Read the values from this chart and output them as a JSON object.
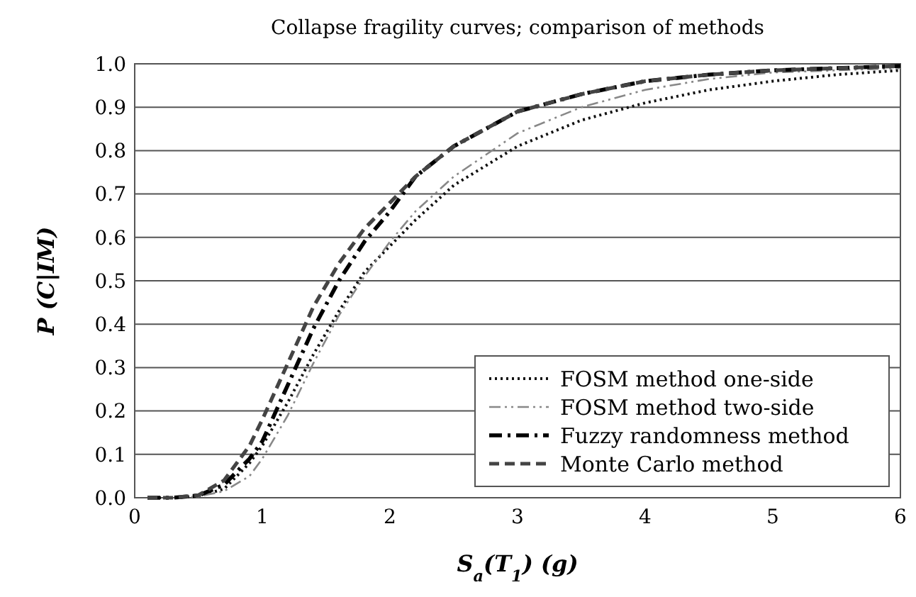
{
  "chart_data": {
    "type": "line",
    "title": "Collapse fragility curves; comparison of methods",
    "xlabel": "S$_{a}$(T$_{1}$) (g)",
    "ylabel": "P (C|IM)",
    "xlim": [
      0,
      6
    ],
    "xticks": [
      0,
      1,
      2,
      3,
      4,
      5,
      6
    ],
    "ylim": [
      0,
      1
    ],
    "yticks": [
      {
        "value": 0,
        "label": "0.0"
      },
      {
        "value": 0.1,
        "label": "0.1"
      },
      {
        "value": 0.2,
        "label": "0.2"
      },
      {
        "value": 0.3,
        "label": "0.3"
      },
      {
        "value": 0.4,
        "label": "0.4"
      },
      {
        "value": 0.5,
        "label": "0.5"
      },
      {
        "value": 0.6,
        "label": "0.6"
      },
      {
        "value": 0.7,
        "label": "0.7"
      },
      {
        "value": 0.8,
        "label": "0.8"
      },
      {
        "value": 0.9,
        "label": "0.9"
      },
      {
        "value": 1,
        "label": "1.0"
      }
    ],
    "grid": "y",
    "legend": "bottom right",
    "marker": "none",
    "x": [
      0.1,
      0.3,
      0.5,
      0.7,
      0.9,
      1.0,
      1.2,
      1.4,
      1.6,
      1.8,
      2.0,
      2.2,
      2.5,
      3,
      3.5,
      4,
      4.5,
      5,
      5.5,
      6
    ],
    "series": [
      {
        "name": "FOSM method one-side",
        "color": "#111111",
        "line_style": "dotted",
        "values": [
          0,
          0,
          0.004,
          0.02,
          0.08,
          0.12,
          0.22,
          0.33,
          0.43,
          0.52,
          0.58,
          0.64,
          0.72,
          0.81,
          0.87,
          0.91,
          0.94,
          0.96,
          0.975,
          0.985
        ]
      },
      {
        "name": "FOSM method two-side",
        "color": "#888888",
        "line_style": "dashdotdot",
        "values": [
          0,
          0,
          0.003,
          0.015,
          0.05,
          0.09,
          0.19,
          0.31,
          0.42,
          0.51,
          0.59,
          0.66,
          0.74,
          0.84,
          0.9,
          0.94,
          0.965,
          0.98,
          0.985,
          0.99
        ]
      },
      {
        "name": "Fuzzy randomness method",
        "color": "#000000",
        "line_style": "dashdot",
        "values": [
          0,
          0,
          0.005,
          0.03,
          0.09,
          0.13,
          0.26,
          0.39,
          0.5,
          0.59,
          0.66,
          0.74,
          0.81,
          0.89,
          0.93,
          0.96,
          0.975,
          0.985,
          0.99,
          0.995
        ]
      },
      {
        "name": "Monte Carlo method",
        "color": "#444444",
        "line_style": "dashed",
        "values": [
          0,
          0,
          0.006,
          0.04,
          0.12,
          0.18,
          0.31,
          0.44,
          0.54,
          0.62,
          0.68,
          0.74,
          0.81,
          0.89,
          0.93,
          0.96,
          0.975,
          0.985,
          0.99,
          0.995
        ]
      }
    ]
  }
}
